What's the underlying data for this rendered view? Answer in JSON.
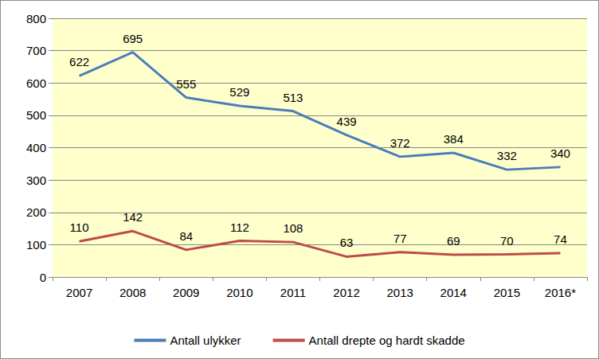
{
  "chart_data": {
    "type": "line",
    "categories": [
      "2007",
      "2008",
      "2009",
      "2010",
      "2011",
      "2012",
      "2013",
      "2014",
      "2015",
      "2016*"
    ],
    "series": [
      {
        "name": "Antall ulykker",
        "color": "#4a7ebb",
        "values": [
          622,
          695,
          555,
          529,
          513,
          439,
          372,
          384,
          332,
          340
        ]
      },
      {
        "name": "Antall drepte og hardt skadde",
        "color": "#be4b48",
        "values": [
          110,
          142,
          84,
          112,
          108,
          63,
          77,
          69,
          70,
          74
        ]
      }
    ],
    "ylim": [
      0,
      800
    ],
    "yticks": [
      0,
      100,
      200,
      300,
      400,
      500,
      600,
      700,
      800
    ],
    "grid": true,
    "legend": "bottom",
    "data_labels": true
  }
}
